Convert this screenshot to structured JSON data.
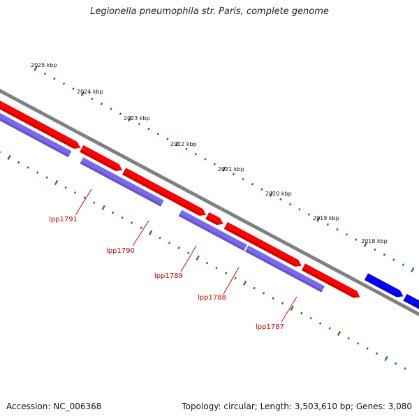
{
  "title": "Legionella pneumophila str. Paris, complete genome",
  "footer": {
    "accession": "Accession: NC_006368",
    "summary": "Topology: circular; Length: 3,503,610 bp; Genes: 3,080"
  },
  "colors": {
    "backbone": "#808080",
    "forward_cds": "#ff0000",
    "gene_track": "#7b68ee",
    "reverse_cds": "#0000ff",
    "ticks": "#1a7a1a",
    "label": "#cc0000"
  },
  "scale": {
    "unit": "kbp",
    "ticks": [
      {
        "label": "2025 kbp"
      },
      {
        "label": "2024 kbp"
      },
      {
        "label": "2023 kbp"
      },
      {
        "label": "2022 kbp"
      },
      {
        "label": "2021 kbp"
      },
      {
        "label": "2020 kbp"
      },
      {
        "label": "2019 kbp"
      },
      {
        "label": "2018 kbp"
      }
    ]
  },
  "gene_labels": [
    "lpp1791",
    "lpp1790",
    "lpp1789",
    "lpp1788",
    "lpp1787"
  ]
}
